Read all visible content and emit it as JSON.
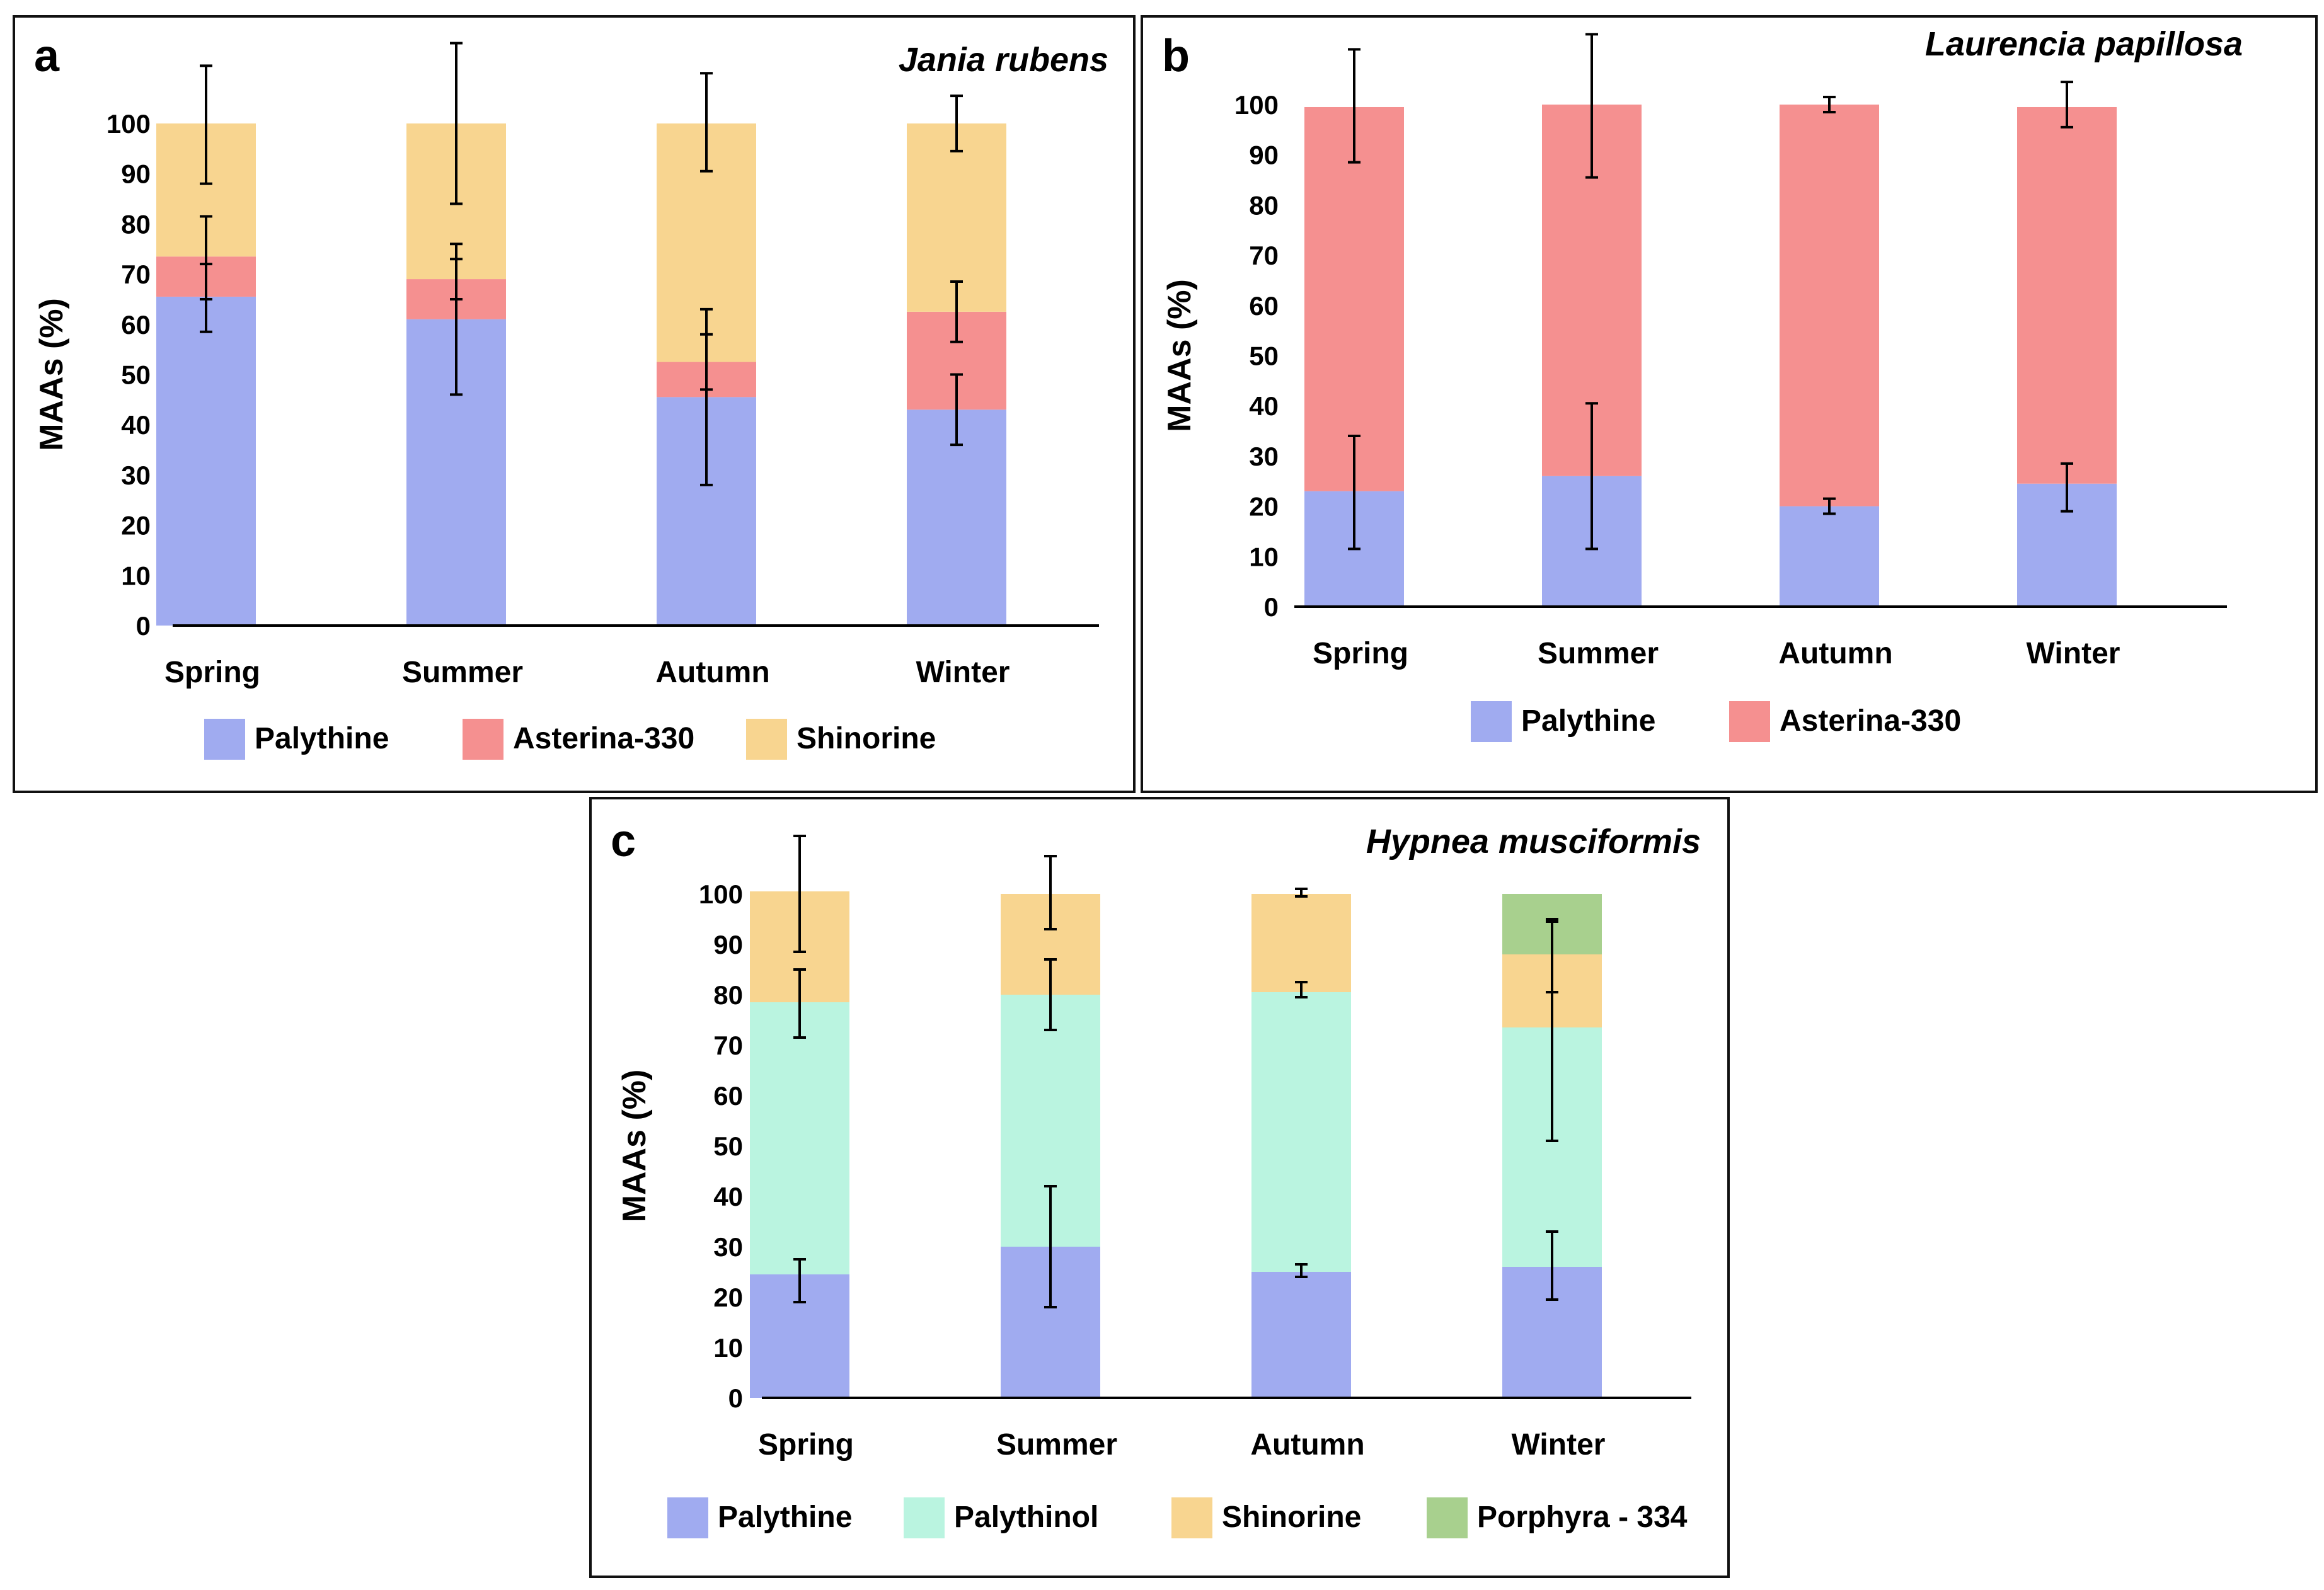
{
  "chart_data": [
    {
      "type": "bar",
      "stacked": true,
      "panel": "a",
      "title": "Jania rubens",
      "ylabel": "MAAs (%)",
      "xlabel": "",
      "ylim": [
        0,
        100
      ],
      "yticks": [
        0,
        10,
        20,
        30,
        40,
        50,
        60,
        70,
        80,
        90,
        100
      ],
      "categories": [
        "Spring",
        "Summer",
        "Autumn",
        "Winter"
      ],
      "legend_position": "bottom",
      "series": [
        {
          "name": "Palythine",
          "color": "#a0abf0",
          "values": [
            65.5,
            61.0,
            45.5,
            43.0
          ],
          "err_low": [
            58.5,
            46.0,
            28.0,
            36.0
          ],
          "err_high": [
            72.0,
            73.0,
            63.0,
            50.0
          ]
        },
        {
          "name": "Asterina-330",
          "color": "#f59090",
          "values": [
            8.0,
            8.0,
            7.0,
            19.5
          ],
          "err_low": [
            65.0,
            65.0,
            47.0,
            56.5
          ],
          "err_high": [
            81.5,
            76.0,
            58.0,
            68.5
          ]
        },
        {
          "name": "Shinorine",
          "color": "#f8d590",
          "values": [
            26.5,
            31.0,
            47.5,
            37.5
          ],
          "err_low": [
            88.0,
            84.0,
            90.5,
            94.5
          ],
          "err_high": [
            111.5,
            116.0,
            110.0,
            105.5
          ]
        }
      ]
    },
    {
      "type": "bar",
      "stacked": true,
      "panel": "b",
      "title": "Laurencia  papillosa",
      "ylabel": "MAAs (%)",
      "xlabel": "",
      "ylim": [
        0,
        100
      ],
      "yticks": [
        0,
        10,
        20,
        30,
        40,
        50,
        60,
        70,
        80,
        90,
        100
      ],
      "categories": [
        "Spring",
        "Summer",
        "Autumn",
        "Winter"
      ],
      "legend_position": "bottom",
      "series": [
        {
          "name": "Palythine",
          "color": "#a0abf0",
          "values": [
            23.0,
            26.0,
            20.0,
            24.5
          ],
          "err_low": [
            11.5,
            11.5,
            18.5,
            19.0
          ],
          "err_high": [
            34.0,
            40.5,
            21.5,
            28.5
          ]
        },
        {
          "name": "Asterina-330",
          "color": "#f59090",
          "values": [
            76.5,
            74.0,
            80.0,
            75.0
          ],
          "err_low": [
            88.5,
            85.5,
            98.5,
            95.5
          ],
          "err_high": [
            111.0,
            114.0,
            101.5,
            104.5
          ]
        }
      ]
    },
    {
      "type": "bar",
      "stacked": true,
      "panel": "c",
      "title": "Hypnea musciformis",
      "ylabel": "MAAs (%)",
      "xlabel": "",
      "ylim": [
        0,
        100
      ],
      "yticks": [
        0,
        10,
        20,
        30,
        40,
        50,
        60,
        70,
        80,
        90,
        100
      ],
      "categories": [
        "Spring",
        "Summer",
        "Autumn",
        "Winter"
      ],
      "legend_position": "bottom",
      "series": [
        {
          "name": "Palythine",
          "color": "#a0abf0",
          "values": [
            24.5,
            30.0,
            25.0,
            26.0
          ],
          "err_low": [
            19.0,
            18.0,
            24.0,
            19.5
          ],
          "err_high": [
            27.5,
            42.0,
            26.5,
            33.0
          ]
        },
        {
          "name": "Palythinol",
          "color": "#baf4e0",
          "values": [
            54.0,
            50.0,
            55.5,
            47.5
          ],
          "err_low": [
            71.5,
            73.0,
            79.5,
            51.0
          ],
          "err_high": [
            85.0,
            87.0,
            82.5,
            95.0
          ]
        },
        {
          "name": "Shinorine",
          "color": "#f8d590",
          "values": [
            22.0,
            20.0,
            19.5,
            14.5
          ],
          "err_low": [
            88.5,
            93.0,
            99.5,
            80.5
          ],
          "err_high": [
            111.5,
            107.5,
            101.0,
            94.5
          ]
        },
        {
          "name": "Porphyra - 334",
          "color": "#a8d08e",
          "values": [
            0,
            0,
            0,
            12.0
          ],
          "err_low": [
            null,
            null,
            null,
            null
          ],
          "err_high": [
            null,
            null,
            null,
            null
          ]
        }
      ]
    }
  ]
}
